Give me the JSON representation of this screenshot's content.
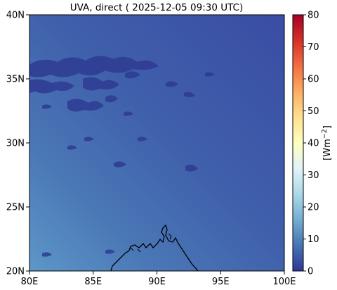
{
  "title": "UVA, direct ( 2025-12-05 09:30 UTC)",
  "map": {
    "lon_range": [
      80,
      100
    ],
    "lat_range": [
      20,
      40
    ],
    "x_ticks": [
      "80E",
      "85E",
      "90E",
      "95E",
      "100E"
    ],
    "y_ticks": [
      "20N",
      "25N",
      "30N",
      "35N",
      "40N"
    ],
    "field_value_range_approx": [
      8,
      16
    ],
    "field_gradient": "higher toward the southwest, lower toward the northeast",
    "features": [
      "coastline",
      "cloud patches"
    ]
  },
  "colorbar": {
    "label": "[Wm⁻²]",
    "label_base": "[Wm",
    "label_exp": "−2",
    "label_close": "]",
    "colormap": "RdYlBu_r",
    "min": 0,
    "max": 80,
    "ticks": [
      "0",
      "10",
      "20",
      "30",
      "40",
      "50",
      "60",
      "70",
      "80"
    ]
  },
  "colors": {
    "field_low": "#3a4fa5",
    "field_high": "#5a93c6",
    "cloud": "#2f3c93",
    "coastline": "#000000"
  }
}
